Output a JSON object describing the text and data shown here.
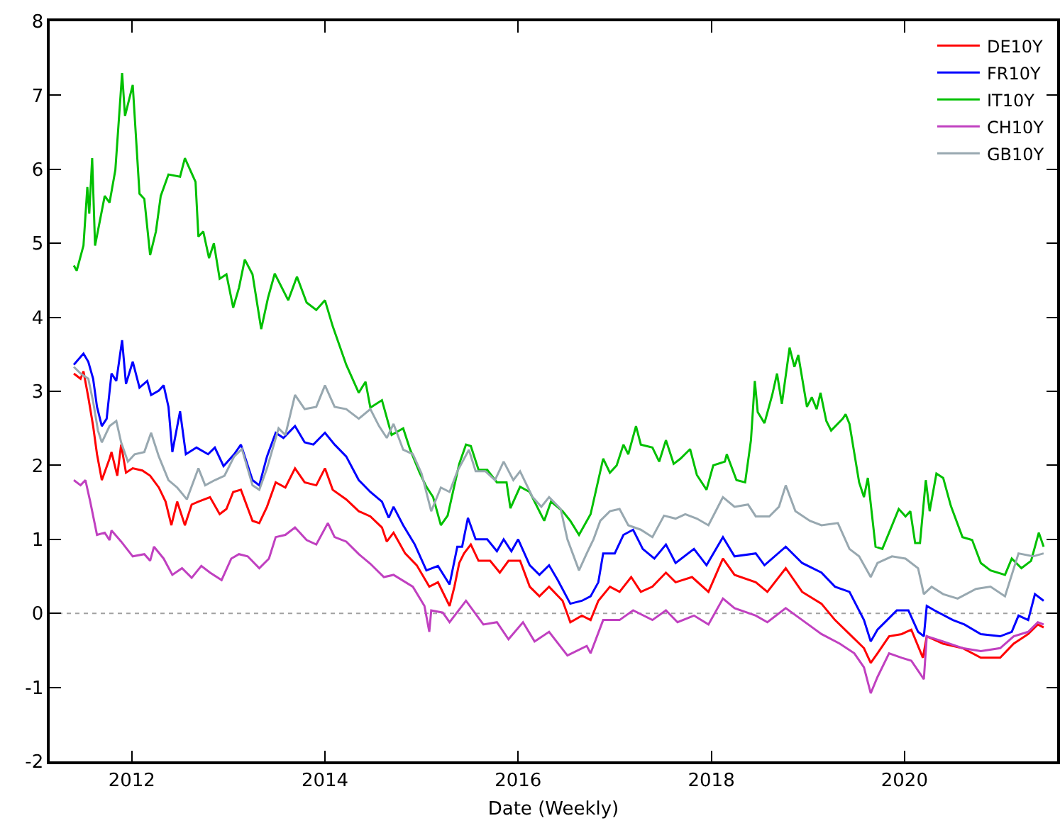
{
  "chart_data": {
    "type": "line",
    "xlabel": "Date (Weekly)",
    "xlim": [
      2011.15,
      2021.58
    ],
    "xticks": [
      2012,
      2014,
      2016,
      2018,
      2020
    ],
    "ylim": [
      -2,
      8
    ],
    "yticks": [
      -2,
      -1,
      0,
      1,
      2,
      3,
      4,
      5,
      6,
      7,
      8
    ],
    "grid": false,
    "legend": "top right",
    "marker": "none",
    "line_style": "solid",
    "ref_lines": [
      {
        "axis": "y",
        "value": 0,
        "color": "#a0a0a0",
        "line_style": "dotted"
      }
    ],
    "series": [
      {
        "name": "DE10Y",
        "color": "#ff0000",
        "x": [
          2011.4,
          2011.47,
          2011.5,
          2011.55,
          2011.6,
          2011.64,
          2011.69,
          2011.77,
          2011.79,
          2011.85,
          2011.89,
          2011.94,
          2012.01,
          2012.11,
          2012.19,
          2012.28,
          2012.35,
          2012.41,
          2012.47,
          2012.55,
          2012.62,
          2012.69,
          2012.81,
          2012.91,
          2012.98,
          2013.05,
          2013.13,
          2013.25,
          2013.32,
          2013.4,
          2013.49,
          2013.59,
          2013.69,
          2013.79,
          2013.91,
          2014.0,
          2014.08,
          2014.22,
          2014.35,
          2014.47,
          2014.59,
          2014.64,
          2014.71,
          2014.83,
          2014.95,
          2015.08,
          2015.17,
          2015.29,
          2015.34,
          2015.39,
          2015.44,
          2015.51,
          2015.59,
          2015.71,
          2015.81,
          2015.9,
          2016.02,
          2016.12,
          2016.22,
          2016.32,
          2016.46,
          2016.54,
          2016.66,
          2016.75,
          2016.83,
          2016.95,
          2017.05,
          2017.17,
          2017.27,
          2017.39,
          2017.53,
          2017.63,
          2017.8,
          2017.97,
          2018.12,
          2018.24,
          2018.46,
          2018.58,
          2018.77,
          2018.94,
          2019.14,
          2019.28,
          2019.43,
          2019.58,
          2019.65,
          2019.72,
          2019.84,
          2019.97,
          2020.07,
          2020.19,
          2020.23,
          2020.4,
          2020.6,
          2020.79,
          2020.99,
          2021.13,
          2021.28,
          2021.38,
          2021.44
        ],
        "values": [
          3.24,
          3.17,
          3.27,
          2.92,
          2.53,
          2.15,
          1.8,
          2.09,
          2.18,
          1.86,
          2.28,
          1.9,
          1.96,
          1.93,
          1.86,
          1.7,
          1.51,
          1.19,
          1.51,
          1.19,
          1.47,
          1.51,
          1.57,
          1.34,
          1.41,
          1.64,
          1.67,
          1.25,
          1.22,
          1.44,
          1.77,
          1.7,
          1.96,
          1.77,
          1.73,
          1.96,
          1.67,
          1.54,
          1.38,
          1.31,
          1.16,
          0.97,
          1.09,
          0.81,
          0.65,
          0.36,
          0.42,
          0.1,
          0.36,
          0.68,
          0.81,
          0.93,
          0.71,
          0.71,
          0.55,
          0.71,
          0.71,
          0.36,
          0.23,
          0.36,
          0.17,
          -0.12,
          -0.03,
          -0.09,
          0.17,
          0.36,
          0.29,
          0.49,
          0.29,
          0.36,
          0.55,
          0.42,
          0.49,
          0.29,
          0.74,
          0.52,
          0.42,
          0.29,
          0.61,
          0.29,
          0.13,
          -0.09,
          -0.28,
          -0.47,
          -0.67,
          -0.54,
          -0.31,
          -0.28,
          -0.22,
          -0.6,
          -0.31,
          -0.41,
          -0.47,
          -0.6,
          -0.6,
          -0.41,
          -0.28,
          -0.15,
          -0.19
        ]
      },
      {
        "name": "FR10Y",
        "color": "#0000ff",
        "x": [
          2011.4,
          2011.5,
          2011.55,
          2011.6,
          2011.64,
          2011.69,
          2011.74,
          2011.79,
          2011.84,
          2011.9,
          2011.94,
          2012.01,
          2012.08,
          2012.16,
          2012.2,
          2012.28,
          2012.33,
          2012.38,
          2012.42,
          2012.5,
          2012.56,
          2012.67,
          2012.79,
          2012.86,
          2012.95,
          2013.06,
          2013.13,
          2013.25,
          2013.32,
          2013.4,
          2013.49,
          2013.57,
          2013.69,
          2013.79,
          2013.88,
          2014.0,
          2014.1,
          2014.22,
          2014.35,
          2014.47,
          2014.59,
          2014.66,
          2014.71,
          2014.81,
          2014.93,
          2015.05,
          2015.17,
          2015.29,
          2015.37,
          2015.42,
          2015.48,
          2015.56,
          2015.68,
          2015.78,
          2015.85,
          2015.93,
          2016.0,
          2016.12,
          2016.22,
          2016.32,
          2016.41,
          2016.54,
          2016.66,
          2016.75,
          2016.83,
          2016.88,
          2017.0,
          2017.09,
          2017.19,
          2017.29,
          2017.41,
          2017.53,
          2017.63,
          2017.82,
          2017.95,
          2018.12,
          2018.24,
          2018.46,
          2018.55,
          2018.77,
          2018.94,
          2019.14,
          2019.28,
          2019.43,
          2019.58,
          2019.65,
          2019.72,
          2019.82,
          2019.92,
          2020.04,
          2020.14,
          2020.2,
          2020.23,
          2020.31,
          2020.5,
          2020.62,
          2020.79,
          2020.99,
          2021.11,
          2021.18,
          2021.28,
          2021.35,
          2021.44
        ],
        "values": [
          3.36,
          3.51,
          3.4,
          3.17,
          2.79,
          2.53,
          2.63,
          3.24,
          3.14,
          3.69,
          3.1,
          3.4,
          3.05,
          3.14,
          2.95,
          3.01,
          3.08,
          2.79,
          2.18,
          2.73,
          2.15,
          2.24,
          2.15,
          2.24,
          1.99,
          2.15,
          2.28,
          1.8,
          1.73,
          2.12,
          2.44,
          2.37,
          2.53,
          2.31,
          2.28,
          2.44,
          2.28,
          2.12,
          1.8,
          1.64,
          1.51,
          1.29,
          1.44,
          1.19,
          0.93,
          0.58,
          0.64,
          0.39,
          0.9,
          0.9,
          1.29,
          1.0,
          1.0,
          0.84,
          1.0,
          0.84,
          1.0,
          0.65,
          0.52,
          0.65,
          0.45,
          0.13,
          0.17,
          0.23,
          0.42,
          0.81,
          0.81,
          1.06,
          1.13,
          0.87,
          0.74,
          0.93,
          0.68,
          0.87,
          0.65,
          1.03,
          0.77,
          0.81,
          0.65,
          0.9,
          0.68,
          0.55,
          0.36,
          0.29,
          -0.09,
          -0.38,
          -0.22,
          -0.09,
          0.04,
          0.04,
          -0.25,
          -0.31,
          0.1,
          0.04,
          -0.09,
          -0.15,
          -0.28,
          -0.31,
          -0.25,
          -0.03,
          -0.09,
          0.26,
          0.17
        ]
      },
      {
        "name": "IT10Y",
        "color": "#00c000",
        "x": [
          2011.4,
          2011.43,
          2011.5,
          2011.54,
          2011.56,
          2011.59,
          2011.62,
          2011.72,
          2011.77,
          2011.83,
          2011.9,
          2011.93,
          2012.01,
          2012.08,
          2012.13,
          2012.19,
          2012.25,
          2012.3,
          2012.38,
          2012.5,
          2012.55,
          2012.66,
          2012.69,
          2012.74,
          2012.8,
          2012.85,
          2012.91,
          2012.98,
          2013.05,
          2013.11,
          2013.17,
          2013.25,
          2013.34,
          2013.41,
          2013.48,
          2013.62,
          2013.71,
          2013.81,
          2013.91,
          2014.0,
          2014.08,
          2014.22,
          2014.35,
          2014.42,
          2014.47,
          2014.59,
          2014.69,
          2014.81,
          2014.88,
          2014.98,
          2015.05,
          2015.12,
          2015.2,
          2015.27,
          2015.39,
          2015.46,
          2015.51,
          2015.59,
          2015.68,
          2015.78,
          2015.88,
          2015.92,
          2016.02,
          2016.12,
          2016.27,
          2016.34,
          2016.46,
          2016.54,
          2016.63,
          2016.75,
          2016.88,
          2016.95,
          2017.02,
          2017.09,
          2017.14,
          2017.22,
          2017.27,
          2017.39,
          2017.46,
          2017.53,
          2017.61,
          2017.68,
          2017.78,
          2017.85,
          2017.95,
          2018.02,
          2018.14,
          2018.16,
          2018.26,
          2018.35,
          2018.41,
          2018.45,
          2018.48,
          2018.55,
          2018.63,
          2018.68,
          2018.73,
          2018.81,
          2018.86,
          2018.9,
          2018.99,
          2019.04,
          2019.09,
          2019.13,
          2019.19,
          2019.24,
          2019.36,
          2019.39,
          2019.43,
          2019.53,
          2019.58,
          2019.62,
          2019.7,
          2019.77,
          2019.84,
          2019.94,
          2020.01,
          2020.06,
          2020.11,
          2020.16,
          2020.22,
          2020.26,
          2020.33,
          2020.4,
          2020.48,
          2020.6,
          2020.7,
          2020.79,
          2020.89,
          2021.04,
          2021.11,
          2021.21,
          2021.31,
          2021.39,
          2021.44
        ],
        "values": [
          4.7,
          4.63,
          4.97,
          5.76,
          5.4,
          6.15,
          4.97,
          5.64,
          5.55,
          5.99,
          7.3,
          6.72,
          7.14,
          5.67,
          5.6,
          4.84,
          5.16,
          5.64,
          5.93,
          5.9,
          6.15,
          5.83,
          5.09,
          5.16,
          4.8,
          5.0,
          4.52,
          4.58,
          4.13,
          4.4,
          4.78,
          4.58,
          3.84,
          4.26,
          4.59,
          4.23,
          4.55,
          4.2,
          4.1,
          4.23,
          3.88,
          3.36,
          2.98,
          3.13,
          2.78,
          2.88,
          2.41,
          2.5,
          2.22,
          1.9,
          1.71,
          1.57,
          1.19,
          1.32,
          2.02,
          2.28,
          2.26,
          1.94,
          1.94,
          1.77,
          1.77,
          1.42,
          1.71,
          1.64,
          1.25,
          1.51,
          1.38,
          1.25,
          1.06,
          1.34,
          2.09,
          1.9,
          2.0,
          2.28,
          2.15,
          2.53,
          2.28,
          2.24,
          2.05,
          2.34,
          2.02,
          2.09,
          2.22,
          1.87,
          1.67,
          2.0,
          2.05,
          2.15,
          1.8,
          1.77,
          2.34,
          3.14,
          2.72,
          2.57,
          2.95,
          3.24,
          2.83,
          3.59,
          3.33,
          3.49,
          2.79,
          2.92,
          2.76,
          2.98,
          2.6,
          2.47,
          2.63,
          2.69,
          2.56,
          1.77,
          1.57,
          1.83,
          0.9,
          0.87,
          1.09,
          1.41,
          1.31,
          1.38,
          0.95,
          0.95,
          1.8,
          1.38,
          1.89,
          1.83,
          1.45,
          1.03,
          0.99,
          0.68,
          0.58,
          0.52,
          0.74,
          0.61,
          0.71,
          1.09,
          0.9
        ]
      },
      {
        "name": "CH10Y",
        "color": "#c040c0",
        "x": [
          2011.4,
          2011.47,
          2011.52,
          2011.57,
          2011.64,
          2011.72,
          2011.77,
          2011.79,
          2011.89,
          2012.01,
          2012.13,
          2012.19,
          2012.23,
          2012.33,
          2012.42,
          2012.52,
          2012.62,
          2012.72,
          2012.81,
          2012.93,
          2013.03,
          2013.11,
          2013.2,
          2013.32,
          2013.42,
          2013.49,
          2013.59,
          2013.69,
          2013.81,
          2013.91,
          2014.03,
          2014.1,
          2014.22,
          2014.35,
          2014.47,
          2014.61,
          2014.71,
          2014.91,
          2015.03,
          2015.08,
          2015.1,
          2015.22,
          2015.29,
          2015.46,
          2015.64,
          2015.78,
          2015.9,
          2016.05,
          2016.17,
          2016.32,
          2016.51,
          2016.71,
          2016.75,
          2016.88,
          2017.05,
          2017.19,
          2017.39,
          2017.53,
          2017.65,
          2017.82,
          2017.97,
          2018.12,
          2018.24,
          2018.46,
          2018.58,
          2018.77,
          2018.94,
          2019.14,
          2019.33,
          2019.48,
          2019.58,
          2019.65,
          2019.72,
          2019.84,
          2019.97,
          2020.07,
          2020.2,
          2020.23,
          2020.4,
          2020.6,
          2020.79,
          2020.99,
          2021.13,
          2021.28,
          2021.38,
          2021.44
        ],
        "values": [
          1.8,
          1.73,
          1.8,
          1.51,
          1.06,
          1.09,
          0.99,
          1.12,
          0.97,
          0.77,
          0.8,
          0.71,
          0.9,
          0.74,
          0.52,
          0.61,
          0.48,
          0.64,
          0.55,
          0.45,
          0.74,
          0.8,
          0.77,
          0.61,
          0.74,
          1.03,
          1.06,
          1.16,
          0.99,
          0.93,
          1.22,
          1.03,
          0.97,
          0.8,
          0.67,
          0.49,
          0.52,
          0.36,
          0.1,
          -0.25,
          0.04,
          0.01,
          -0.12,
          0.17,
          -0.15,
          -0.12,
          -0.35,
          -0.12,
          -0.38,
          -0.25,
          -0.57,
          -0.44,
          -0.54,
          -0.09,
          -0.09,
          0.04,
          -0.09,
          0.04,
          -0.12,
          -0.03,
          -0.15,
          0.2,
          0.07,
          -0.03,
          -0.12,
          0.07,
          -0.09,
          -0.28,
          -0.41,
          -0.54,
          -0.73,
          -1.08,
          -0.86,
          -0.54,
          -0.6,
          -0.64,
          -0.89,
          -0.31,
          -0.38,
          -0.47,
          -0.51,
          -0.47,
          -0.31,
          -0.25,
          -0.12,
          -0.15
        ]
      },
      {
        "name": "GB10Y",
        "color": "#98a8b0",
        "x": [
          2011.4,
          2011.47,
          2011.55,
          2011.6,
          2011.65,
          2011.69,
          2011.77,
          2011.84,
          2011.89,
          2011.96,
          2012.03,
          2012.13,
          2012.2,
          2012.28,
          2012.38,
          2012.47,
          2012.57,
          2012.69,
          2012.76,
          2012.86,
          2012.96,
          2013.06,
          2013.14,
          2013.25,
          2013.32,
          2013.4,
          2013.52,
          2013.59,
          2013.69,
          2013.79,
          2013.91,
          2014.0,
          2014.1,
          2014.22,
          2014.35,
          2014.47,
          2014.56,
          2014.64,
          2014.71,
          2014.81,
          2014.91,
          2015.0,
          2015.1,
          2015.2,
          2015.29,
          2015.37,
          2015.49,
          2015.56,
          2015.66,
          2015.76,
          2015.85,
          2015.95,
          2016.02,
          2016.15,
          2016.24,
          2016.32,
          2016.44,
          2016.51,
          2016.63,
          2016.71,
          2016.78,
          2016.85,
          2016.95,
          2017.05,
          2017.14,
          2017.27,
          2017.39,
          2017.51,
          2017.63,
          2017.73,
          2017.85,
          2017.97,
          2018.12,
          2018.24,
          2018.38,
          2018.46,
          2018.6,
          2018.7,
          2018.77,
          2018.87,
          2019.02,
          2019.14,
          2019.31,
          2019.43,
          2019.53,
          2019.65,
          2019.72,
          2019.87,
          2020.01,
          2020.14,
          2020.2,
          2020.28,
          2020.4,
          2020.55,
          2020.74,
          2020.89,
          2021.04,
          2021.18,
          2021.33,
          2021.44
        ],
        "values": [
          3.33,
          3.24,
          3.17,
          2.86,
          2.47,
          2.31,
          2.53,
          2.6,
          2.31,
          2.05,
          2.15,
          2.18,
          2.44,
          2.12,
          1.8,
          1.7,
          1.54,
          1.96,
          1.73,
          1.8,
          1.86,
          2.12,
          2.22,
          1.73,
          1.67,
          1.96,
          2.5,
          2.41,
          2.95,
          2.76,
          2.79,
          3.08,
          2.79,
          2.76,
          2.63,
          2.76,
          2.53,
          2.37,
          2.56,
          2.21,
          2.15,
          1.89,
          1.38,
          1.7,
          1.64,
          1.92,
          2.21,
          1.92,
          1.92,
          1.8,
          2.05,
          1.8,
          1.92,
          1.57,
          1.44,
          1.57,
          1.41,
          1.0,
          0.58,
          0.81,
          1.0,
          1.25,
          1.38,
          1.41,
          1.19,
          1.13,
          1.03,
          1.32,
          1.28,
          1.34,
          1.28,
          1.19,
          1.57,
          1.44,
          1.47,
          1.31,
          1.31,
          1.44,
          1.73,
          1.38,
          1.25,
          1.19,
          1.22,
          0.87,
          0.77,
          0.49,
          0.68,
          0.77,
          0.74,
          0.61,
          0.26,
          0.36,
          0.26,
          0.2,
          0.33,
          0.36,
          0.23,
          0.81,
          0.77,
          0.81
        ]
      }
    ]
  }
}
